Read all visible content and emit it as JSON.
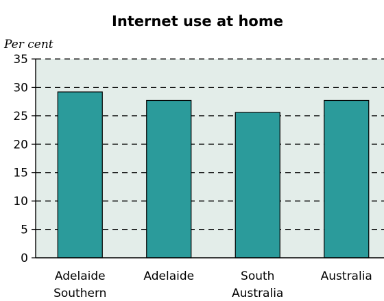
{
  "chart_data": {
    "type": "bar",
    "title": "Internet use at home",
    "ylabel": "Per cent",
    "xlabel": "",
    "ylim": [
      0,
      35
    ],
    "yticks": [
      0,
      5,
      10,
      15,
      20,
      25,
      30,
      35
    ],
    "grid": "horizontal dashed",
    "categories": [
      [
        "Adelaide",
        "Southern"
      ],
      [
        "Adelaide"
      ],
      [
        "South",
        "Australia"
      ],
      [
        "Australia"
      ]
    ],
    "values": [
      29.2,
      27.7,
      25.6,
      27.7
    ],
    "colors": {
      "bar": "#2b9b9b",
      "bar_stroke": "#000000",
      "plot_background": "#e3ede9",
      "grid": "#000000"
    }
  }
}
